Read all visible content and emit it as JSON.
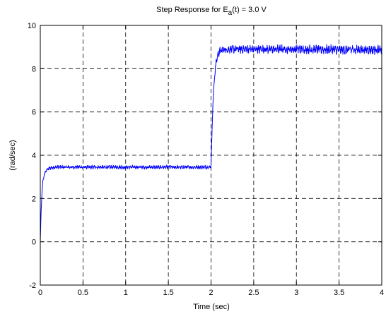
{
  "chart_data": {
    "type": "line",
    "title_prefix": "Step Response for E",
    "title_subscript": "a",
    "title_suffix": "(t) = 3.0 V",
    "xlabel": "Time (sec)",
    "ylabel": "(rad/sec)",
    "xlim": [
      0,
      4
    ],
    "ylim": [
      -2,
      10
    ],
    "xticks": [
      0,
      0.5,
      1,
      1.5,
      2,
      2.5,
      3,
      3.5,
      4
    ],
    "yticks": [
      -2,
      0,
      2,
      4,
      6,
      8,
      10
    ],
    "xtick_labels": [
      "0",
      "0.5",
      "1",
      "1.5",
      "2",
      "2.5",
      "3",
      "3.5",
      "4"
    ],
    "ytick_labels": [
      "-2",
      "0",
      "2",
      "4",
      "6",
      "8",
      "10"
    ],
    "grid": true,
    "grid_style": "dashed",
    "series": [
      {
        "color": "#0000ff",
        "x": [
          0,
          0.01,
          0.02,
          0.03,
          0.05,
          0.08,
          0.12,
          0.2,
          0.5,
          1.0,
          1.5,
          1.98,
          2.0,
          2.02,
          2.04,
          2.06,
          2.08,
          2.1,
          2.15,
          2.25,
          2.5,
          3.0,
          3.5,
          4.0
        ],
        "y": [
          0,
          1.4,
          2.3,
          2.8,
          3.15,
          3.35,
          3.42,
          3.45,
          3.45,
          3.45,
          3.45,
          3.45,
          3.5,
          6.2,
          7.6,
          8.3,
          8.65,
          8.8,
          8.88,
          8.9,
          8.9,
          8.9,
          8.88,
          8.88
        ],
        "noise_amplitude": [
          0,
          0.05,
          0.05,
          0.05,
          0.06,
          0.07,
          0.07,
          0.07,
          0.07,
          0.07,
          0.07,
          0.07,
          0.05,
          0.08,
          0.1,
          0.12,
          0.14,
          0.15,
          0.15,
          0.15,
          0.16,
          0.16,
          0.17,
          0.17
        ]
      }
    ]
  }
}
